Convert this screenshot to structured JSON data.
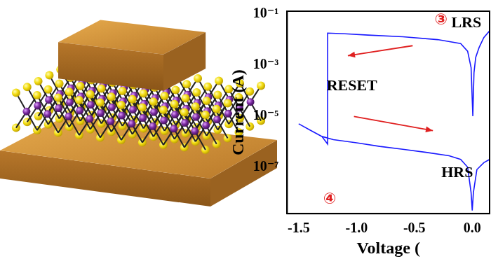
{
  "chart_data": {
    "type": "line",
    "x_label": "Voltage (",
    "y_label": "Current (A)",
    "x": [
      0.15,
      0.1,
      0.06,
      0.03,
      0.015,
      0.005,
      -0.01,
      -0.04,
      -0.1,
      -0.3,
      -0.6,
      -0.9,
      -1.1,
      -1.25,
      -1.25,
      -1.3,
      -1.4,
      -1.5,
      -1.4,
      -1.3,
      -1.2,
      -1.0,
      -0.8,
      -0.6,
      -0.4,
      -0.2,
      -0.1,
      -0.04,
      -0.01,
      0.0,
      0.01,
      0.04,
      0.1,
      0.15
    ],
    "values": [
      0.022,
      0.012,
      0.005,
      0.002,
      0.0005,
      1e-05,
      0.0008,
      0.0035,
      0.007,
      0.01,
      0.013,
      0.015,
      0.017,
      0.018,
      8e-07,
      1.6e-06,
      2.8e-06,
      5e-06,
      2.8e-06,
      1.6e-06,
      1.2e-06,
      9e-07,
      6.5e-07,
      5e-07,
      3.8e-07,
      2.8e-07,
      2e-07,
      1e-07,
      1e-08,
      2e-09,
      1e-08,
      8e-08,
      1.5e-07,
      2e-07
    ],
    "color": "#1a1aff",
    "xlim": [
      -1.6,
      0.15
    ],
    "xticks": [
      -1.5,
      {
        "value": -1,
        "label": "-1.0"
      },
      -0.5,
      {
        "value": 0,
        "label": "0.0"
      }
    ],
    "ylim": [
      1.5e-09,
      0.13
    ],
    "yticks": [
      {
        "value": 1e-07,
        "label": "10⁻⁷"
      },
      {
        "value": 1e-05,
        "label": "10⁻⁵"
      },
      {
        "value": 0.001,
        "label": "10⁻³"
      },
      {
        "value": 0.1,
        "label": "10⁻¹"
      }
    ],
    "log": "y",
    "grid": false,
    "annotations": [
      "③",
      "LRS",
      "RESET",
      "HRS",
      "④"
    ]
  }
}
